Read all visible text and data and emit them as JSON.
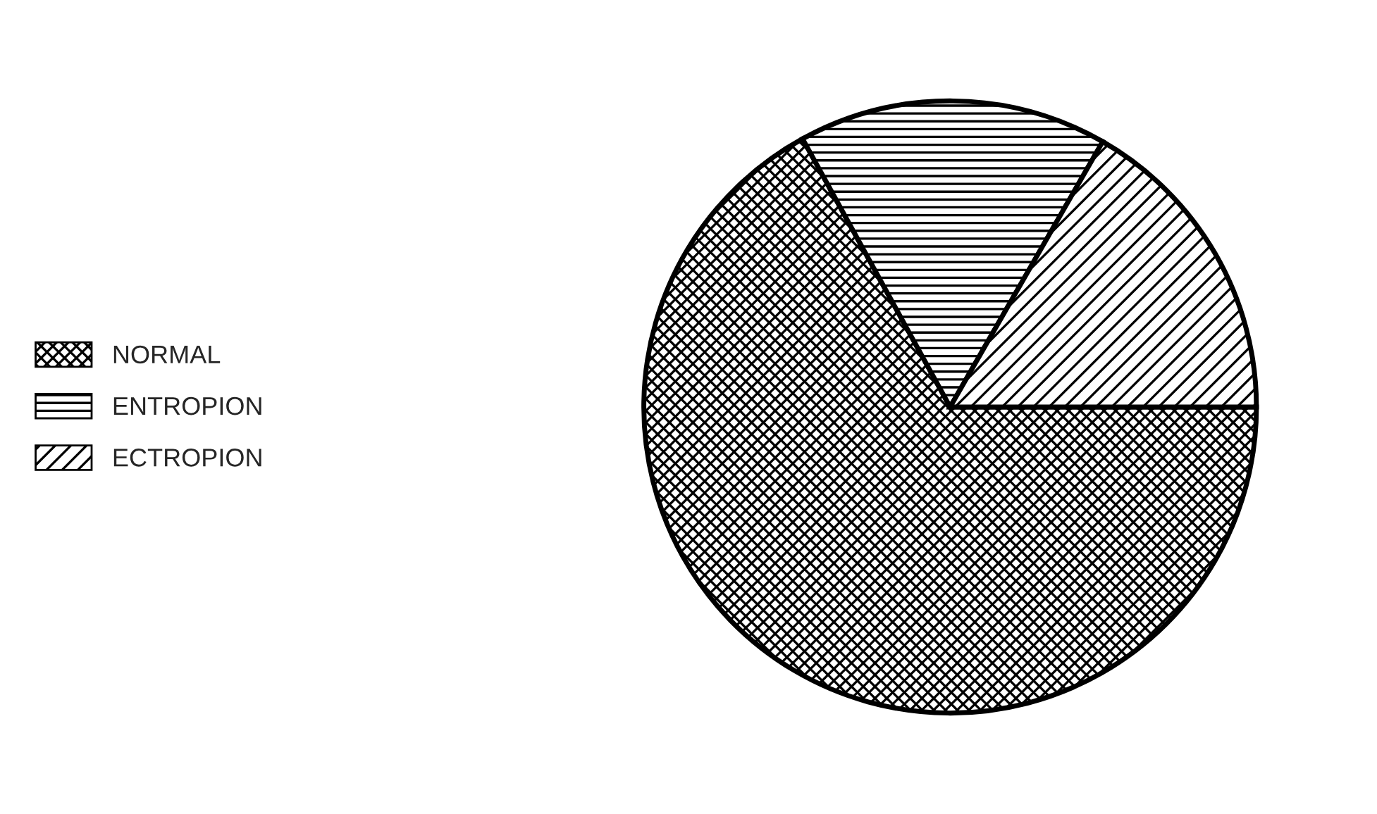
{
  "chart_data": {
    "type": "pie",
    "categories": [
      "NORMAL",
      "ENTROPION",
      "ECTROPION"
    ],
    "values": [
      67,
      16.3,
      16.7
    ],
    "colors": [
      "#000000",
      "#000000",
      "#000000"
    ],
    "legend": "left"
  }
}
